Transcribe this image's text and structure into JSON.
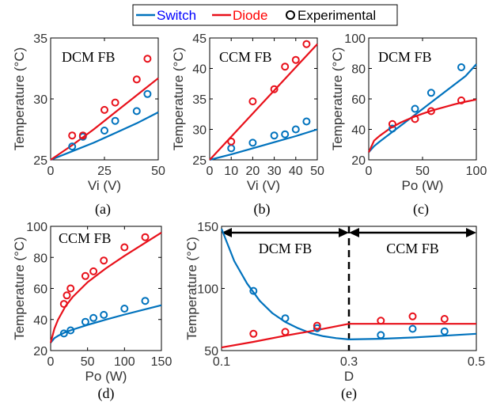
{
  "legend": {
    "items": [
      {
        "label": "Switch",
        "kind": "line",
        "color": "#0072BD"
      },
      {
        "label": "Diode",
        "kind": "line",
        "color": "#E8101A"
      },
      {
        "label": "Experimental",
        "kind": "marker",
        "color": "#000000"
      }
    ],
    "placement": "top-center"
  },
  "colors": {
    "switch": "#0072BD",
    "diode": "#E8101A",
    "axis": "#000000",
    "label_text": "#3a3a3a"
  },
  "chart_data": [
    {
      "id": "a",
      "type": "line",
      "panel_label": "(a)",
      "annotation": "DCM FB",
      "xlabel": "Vi (V)",
      "ylabel": "Temperature (°C)",
      "xlim": [
        0,
        50
      ],
      "ylim": [
        25,
        35
      ],
      "xticks": [
        "0",
        "25",
        "50"
      ],
      "yticks": [
        "25",
        "30",
        "35"
      ],
      "xtick_values": [
        0,
        25,
        50
      ],
      "ytick_values": [
        25,
        30,
        35
      ],
      "series": [
        {
          "name": "Switch",
          "kind": "curve",
          "color": "#0072BD",
          "x": [
            0,
            10,
            20,
            30,
            40,
            50
          ],
          "y": [
            25.0,
            25.7,
            26.4,
            27.2,
            28.0,
            28.9
          ]
        },
        {
          "name": "Diode",
          "kind": "curve",
          "color": "#E8101A",
          "x": [
            0,
            10,
            20,
            30,
            40,
            50
          ],
          "y": [
            25.0,
            26.2,
            27.5,
            28.9,
            30.3,
            31.7
          ]
        },
        {
          "name": "Switch",
          "kind": "points",
          "color": "#0072BD",
          "x": [
            10,
            15,
            25,
            30,
            40,
            45
          ],
          "y": [
            26.1,
            26.9,
            27.4,
            28.2,
            29.0,
            30.4
          ]
        },
        {
          "name": "Diode",
          "kind": "points",
          "color": "#E8101A",
          "x": [
            10,
            15,
            25,
            30,
            40,
            45
          ],
          "y": [
            27.0,
            27.0,
            29.1,
            29.7,
            31.6,
            33.3
          ]
        }
      ]
    },
    {
      "id": "b",
      "type": "line",
      "panel_label": "(b)",
      "annotation": "CCM FB",
      "xlabel": "Vi (V)",
      "ylabel": "Temperature (°C)",
      "xlim": [
        0,
        50
      ],
      "ylim": [
        25,
        45
      ],
      "xticks": [
        "0",
        "10",
        "20",
        "30",
        "40",
        "50"
      ],
      "yticks": [
        "25",
        "30",
        "35",
        "40",
        "45"
      ],
      "xtick_values": [
        0,
        10,
        20,
        30,
        40,
        50
      ],
      "ytick_values": [
        25,
        30,
        35,
        40,
        45
      ],
      "series": [
        {
          "name": "Switch",
          "kind": "curve",
          "color": "#0072BD",
          "x": [
            0,
            10,
            20,
            30,
            40,
            50
          ],
          "y": [
            25.0,
            25.9,
            26.9,
            27.9,
            28.9,
            30.0
          ]
        },
        {
          "name": "Diode",
          "kind": "curve",
          "color": "#E8101A",
          "x": [
            0,
            10,
            20,
            30,
            40,
            50
          ],
          "y": [
            25.0,
            28.8,
            32.6,
            36.4,
            40.2,
            44.0
          ]
        },
        {
          "name": "Switch",
          "kind": "points",
          "color": "#0072BD",
          "x": [
            10,
            20,
            30,
            35,
            40,
            45
          ],
          "y": [
            26.9,
            27.8,
            29.0,
            29.2,
            30.0,
            31.3
          ]
        },
        {
          "name": "Diode",
          "kind": "points",
          "color": "#E8101A",
          "x": [
            10,
            20,
            30,
            35,
            40,
            45
          ],
          "y": [
            28.0,
            34.6,
            36.6,
            40.3,
            41.4,
            44.0
          ]
        }
      ]
    },
    {
      "id": "c",
      "type": "line",
      "panel_label": "(c)",
      "annotation": "DCM FB",
      "xlabel": "Po (W)",
      "ylabel": "Temperature (°C)",
      "xlim": [
        0,
        100
      ],
      "ylim": [
        20,
        100
      ],
      "xticks": [
        "0",
        "50",
        "100"
      ],
      "yticks": [
        "20",
        "40",
        "60",
        "80",
        "100"
      ],
      "xtick_values": [
        0,
        50,
        100
      ],
      "ytick_values": [
        20,
        40,
        60,
        80,
        100
      ],
      "series": [
        {
          "name": "Switch",
          "kind": "curve",
          "color": "#0072BD",
          "x": [
            0,
            5,
            10,
            20,
            30,
            40,
            50,
            60,
            70,
            80,
            90,
            100
          ],
          "y": [
            25.0,
            29.0,
            31.9,
            37.3,
            42.6,
            48.0,
            53.4,
            58.8,
            64.2,
            69.6,
            75.0,
            82.8
          ]
        },
        {
          "name": "Diode",
          "kind": "curve",
          "color": "#E8101A",
          "x": [
            0,
            5,
            10,
            20,
            30,
            40,
            50,
            60,
            70,
            80,
            90,
            100
          ],
          "y": [
            25.0,
            32.6,
            35.7,
            40.8,
            44.6,
            47.7,
            50.3,
            52.6,
            54.6,
            56.5,
            58.2,
            59.6
          ]
        },
        {
          "name": "Switch",
          "kind": "points",
          "color": "#0072BD",
          "x": [
            22,
            43,
            58,
            86
          ],
          "y": [
            40.5,
            53.5,
            64.0,
            80.8
          ]
        },
        {
          "name": "Diode",
          "kind": "points",
          "color": "#E8101A",
          "x": [
            22,
            43,
            58,
            86
          ],
          "y": [
            43.5,
            46.8,
            52.0,
            59.0
          ]
        }
      ]
    },
    {
      "id": "d",
      "type": "line",
      "panel_label": "(d)",
      "annotation": "CCM FB",
      "xlabel": "Po (W)",
      "ylabel": "Temperature (°C)",
      "xlim": [
        0,
        150
      ],
      "ylim": [
        20,
        100
      ],
      "xticks": [
        "0",
        "50",
        "100",
        "150"
      ],
      "yticks": [
        "20",
        "40",
        "60",
        "80",
        "100"
      ],
      "xtick_values": [
        0,
        50,
        100,
        150
      ],
      "ytick_values": [
        20,
        40,
        60,
        80,
        100
      ],
      "series": [
        {
          "name": "Switch",
          "kind": "curve",
          "color": "#0072BD",
          "x": [
            0,
            5,
            10,
            20,
            30,
            50,
            75,
            100,
            125,
            150
          ],
          "y": [
            25.0,
            28.0,
            29.5,
            31.8,
            33.5,
            36.5,
            40.0,
            43.2,
            46.2,
            49.2
          ]
        },
        {
          "name": "Diode",
          "kind": "curve",
          "color": "#E8101A",
          "x": [
            0,
            5,
            10,
            20,
            30,
            50,
            75,
            100,
            125,
            150
          ],
          "y": [
            25.0,
            34.0,
            39.8,
            48.5,
            54.6,
            64.0,
            73.0,
            81.0,
            88.5,
            96.0
          ]
        },
        {
          "name": "Switch",
          "kind": "points",
          "color": "#0072BD",
          "x": [
            18,
            27,
            47,
            58,
            72,
            100,
            128
          ],
          "y": [
            31.0,
            33.0,
            38.5,
            41.0,
            43.0,
            47.0,
            52.0
          ]
        },
        {
          "name": "Diode",
          "kind": "points",
          "color": "#E8101A",
          "x": [
            18,
            22,
            27,
            47,
            58,
            72,
            100,
            128
          ],
          "y": [
            50.0,
            55.5,
            60.0,
            68.0,
            71.0,
            78.0,
            86.5,
            93.0
          ]
        }
      ]
    },
    {
      "id": "e",
      "type": "line",
      "panel_label": "(e)",
      "xlabel": "D",
      "ylabel": "Temperature (°C)",
      "xlim": [
        0.1,
        0.5
      ],
      "ylim": [
        50,
        150
      ],
      "xticks": [
        "0.1",
        "0.3",
        "0.5"
      ],
      "yticks": [
        "50",
        "100",
        "150"
      ],
      "xtick_values": [
        0.1,
        0.3,
        0.5
      ],
      "ytick_values": [
        50,
        100,
        150
      ],
      "region_boundary": 0.3,
      "regions": [
        {
          "label": "DCM FB",
          "from": 0.1,
          "to": 0.3
        },
        {
          "label": "CCM FB",
          "from": 0.3,
          "to": 0.5
        }
      ],
      "series": [
        {
          "name": "Switch",
          "kind": "curve",
          "color": "#0072BD",
          "x": [
            0.1,
            0.12,
            0.14,
            0.16,
            0.18,
            0.2,
            0.22,
            0.24,
            0.26,
            0.28,
            0.3,
            0.35,
            0.4,
            0.45,
            0.5
          ],
          "y": [
            148.0,
            122.0,
            104.0,
            90.0,
            80.0,
            73.0,
            68.0,
            64.0,
            61.5,
            60.0,
            59.0,
            59.5,
            60.5,
            62.0,
            63.5
          ]
        },
        {
          "name": "Diode",
          "kind": "curve",
          "color": "#E8101A",
          "x": [
            0.1,
            0.15,
            0.2,
            0.25,
            0.3,
            0.35,
            0.4,
            0.45,
            0.5
          ],
          "y": [
            52.5,
            57.0,
            62.0,
            66.5,
            71.5,
            71.5,
            71.5,
            71.5,
            71.5
          ]
        },
        {
          "name": "Switch",
          "kind": "points",
          "color": "#0072BD",
          "x": [
            0.15,
            0.2,
            0.25,
            0.35,
            0.4,
            0.45
          ],
          "y": [
            98.0,
            76.0,
            68.0,
            62.5,
            67.5,
            65.5
          ]
        },
        {
          "name": "Diode",
          "kind": "points",
          "color": "#E8101A",
          "x": [
            0.15,
            0.2,
            0.25,
            0.35,
            0.4,
            0.45
          ],
          "y": [
            63.5,
            65.0,
            70.0,
            74.0,
            77.5,
            75.5
          ]
        }
      ]
    }
  ]
}
